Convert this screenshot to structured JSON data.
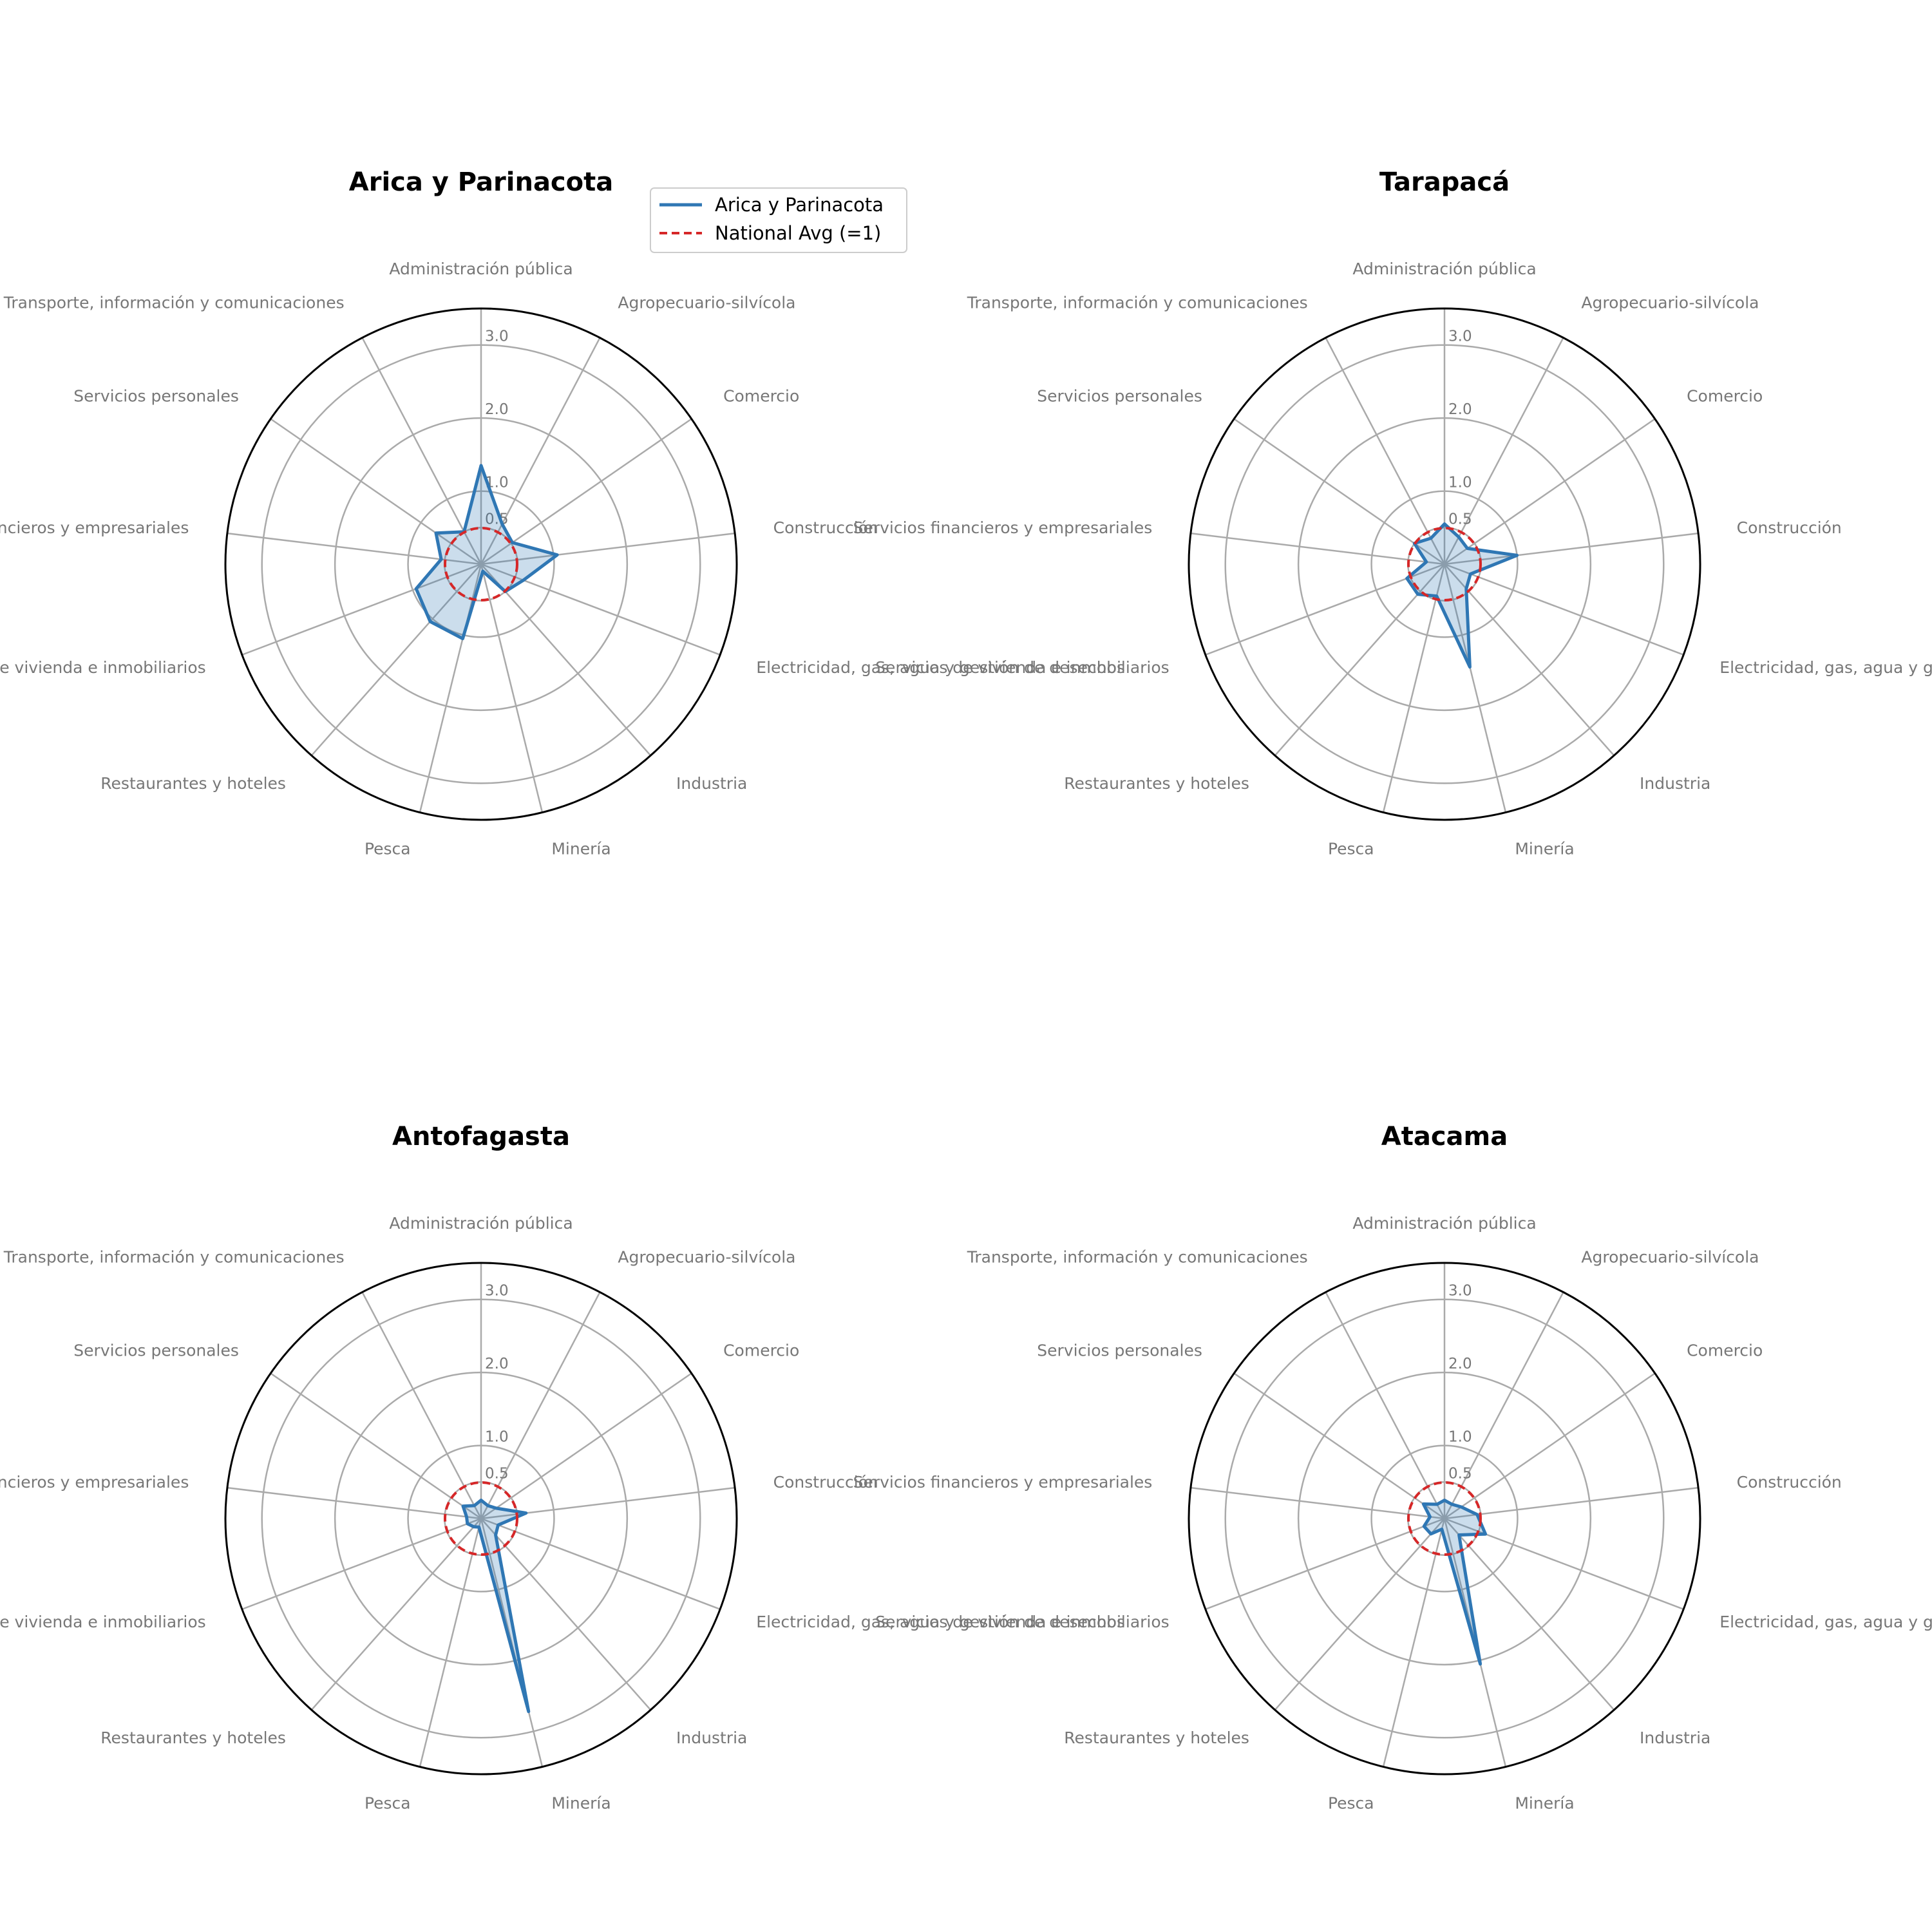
{
  "chart_data": {
    "type": "radar",
    "categories": [
      "Administración pública",
      "Agropecuario-silvícola",
      "Comercio",
      "Construcción",
      "Electricidad, gas, agua y gestión de desechos",
      "Industria",
      "Minería",
      "Pesca",
      "Restaurantes y hoteles",
      "Servicios de vivienda e inmobiliarios",
      "Servicios financieros y empresariales",
      "Servicios personales",
      "Transporte, información y comunicaciones"
    ],
    "radial_ticks": [
      0.5,
      1.0,
      2.0,
      3.0
    ],
    "radial_tick_labels": [
      "0.5",
      "1.0",
      "2.0",
      "3.0"
    ],
    "rlim": [
      0,
      3.5
    ],
    "reference": {
      "name": "National Avg (=1)",
      "value": 1.0,
      "color": "#d62728",
      "style": "dashed"
    },
    "series_color": "#2f77b4",
    "legend": {
      "entries": [
        "Arica y Parinacota",
        "National Avg (=1)"
      ],
      "placement": "upper-right of first panel"
    },
    "panels": [
      {
        "title": "Arica y Parinacota",
        "values": [
          1.35,
          0.62,
          0.52,
          1.05,
          0.62,
          0.5,
          0.1,
          1.05,
          1.05,
          0.95,
          0.55,
          0.75,
          0.5
        ]
      },
      {
        "title": "Tarapacá",
        "values": [
          0.55,
          0.42,
          0.38,
          1.0,
          0.38,
          0.45,
          1.45,
          0.45,
          0.55,
          0.55,
          0.25,
          0.5,
          0.4
        ]
      },
      {
        "title": "Antofagasta",
        "values": [
          0.25,
          0.2,
          0.25,
          0.62,
          0.25,
          0.3,
          2.72,
          0.12,
          0.15,
          0.2,
          0.2,
          0.3,
          0.2
        ]
      },
      {
        "title": "Atacama",
        "values": [
          0.25,
          0.22,
          0.28,
          0.45,
          0.6,
          0.3,
          2.05,
          0.15,
          0.28,
          0.3,
          0.2,
          0.35,
          0.22
        ]
      }
    ]
  }
}
